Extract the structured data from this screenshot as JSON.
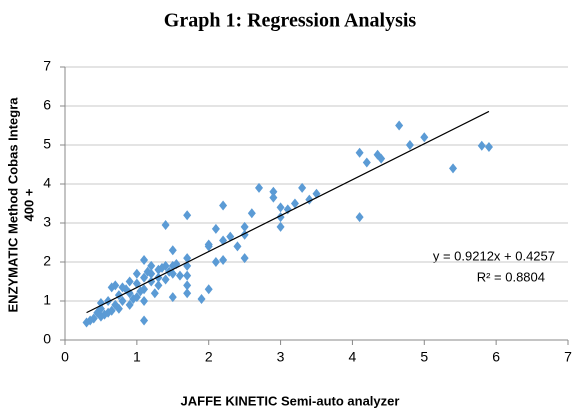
{
  "chart_data": {
    "type": "scatter",
    "title": "Graph 1: Regression Analysis",
    "xlabel": "JAFFE KINETIC  Semi-auto analyzer",
    "ylabel": [
      "ENZYMATIC Method Cobas Integra",
      "400 +"
    ],
    "annotations": [
      "y = 0.9212x + 0.4257",
      "R² = 0.8804"
    ],
    "xlim": [
      0,
      7
    ],
    "ylim": [
      0,
      7
    ],
    "xticks": [
      0,
      1,
      2,
      3,
      4,
      5,
      6,
      7
    ],
    "yticks": [
      0,
      1,
      2,
      3,
      4,
      5,
      6,
      7
    ],
    "grid": true,
    "trendline": {
      "slope": 0.9212,
      "intercept": 0.4257,
      "x": [
        0.3,
        5.9
      ],
      "color": "#000000"
    },
    "series": [
      {
        "color": "#5b9bd5",
        "x": [
          4.65,
          5.0,
          4.1,
          4.2,
          4.35,
          4.4,
          4.8,
          5.8,
          5.9,
          5.4,
          4.1,
          3.3,
          3.5,
          3.4,
          3.2,
          2.9,
          2.9,
          2.7,
          3.0,
          3.1,
          3.0,
          3.0,
          2.6,
          2.5,
          2.5,
          2.5,
          2.3,
          2.2,
          2.2,
          2.1,
          2.1,
          2.0,
          2.0,
          2.2,
          2.4,
          2.0,
          1.9,
          1.7,
          1.7,
          1.7,
          1.7,
          1.7,
          1.7,
          1.5,
          1.5,
          1.5,
          1.5,
          1.4,
          1.4,
          1.4,
          1.3,
          1.3,
          1.3,
          1.2,
          1.2,
          1.2,
          1.25,
          1.1,
          1.1,
          1.1,
          1.1,
          1.1,
          1.0,
          1.0,
          1.0,
          0.9,
          0.9,
          0.9,
          0.85,
          0.8,
          0.8,
          0.75,
          0.7,
          0.7,
          0.65,
          0.65,
          0.6,
          0.6,
          0.55,
          0.5,
          0.5,
          0.45,
          0.4,
          0.35,
          0.3,
          0.5,
          1.35,
          1.45,
          1.55,
          1.6,
          1.15,
          0.95,
          0.75,
          1.05
        ],
        "values": [
          5.5,
          5.2,
          4.8,
          4.55,
          4.75,
          4.65,
          5.0,
          4.98,
          4.95,
          4.4,
          3.15,
          3.9,
          3.75,
          3.6,
          3.5,
          3.8,
          3.65,
          3.9,
          3.4,
          3.35,
          2.9,
          3.15,
          3.25,
          2.9,
          2.7,
          2.1,
          2.65,
          2.55,
          3.45,
          2.85,
          2.0,
          2.45,
          2.4,
          2.05,
          2.4,
          1.3,
          1.05,
          3.2,
          2.1,
          1.9,
          1.65,
          1.4,
          1.2,
          1.7,
          1.9,
          2.3,
          1.1,
          2.95,
          1.55,
          1.9,
          1.4,
          1.6,
          1.8,
          1.5,
          1.7,
          1.9,
          1.2,
          1.0,
          2.05,
          0.5,
          1.6,
          1.3,
          1.1,
          1.45,
          1.7,
          1.2,
          1.5,
          0.9,
          1.3,
          1.0,
          1.35,
          1.15,
          0.9,
          1.4,
          1.35,
          0.75,
          0.7,
          1.0,
          0.65,
          0.95,
          0.6,
          0.7,
          0.55,
          0.5,
          0.45,
          0.8,
          1.85,
          1.75,
          1.95,
          1.65,
          1.75,
          1.05,
          0.8,
          1.25
        ]
      }
    ]
  }
}
